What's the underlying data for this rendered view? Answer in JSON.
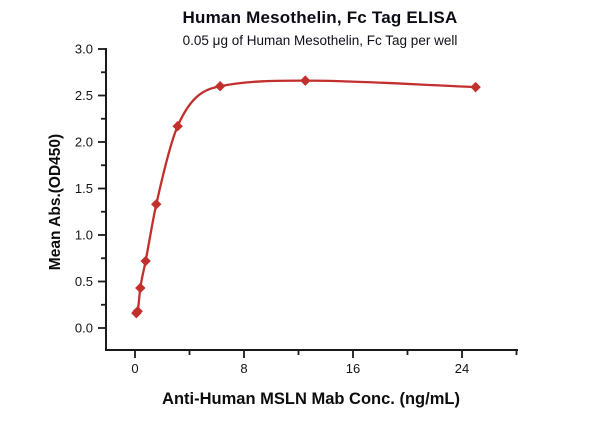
{
  "title": "Human Mesothelin, Fc Tag ELISA",
  "subtitle": "0.05 μg of Human Mesothelin, Fc Tag per well",
  "chart_data": {
    "type": "scatter",
    "title": "Human Mesothelin, Fc Tag ELISA",
    "subtitle": "0.05 μg of Human Mesothelin, Fc Tag per well",
    "xlabel": "Anti-Human MSLN Mab Conc. (ng/mL)",
    "ylabel": "Mean Abs.(OD450)",
    "x": [
      0.098,
      0.195,
      0.39,
      0.78,
      1.56,
      3.13,
      6.25,
      12.5,
      25
    ],
    "y": [
      0.16,
      0.18,
      0.43,
      0.72,
      1.33,
      2.17,
      2.6,
      2.66,
      2.59
    ],
    "fit_curve": "smooth sigmoidal fit through points",
    "marker": "diamond",
    "xlim": [
      -2.1,
      28.1
    ],
    "ylim": [
      -0.24,
      3.0
    ],
    "x_major_ticks": [
      "0",
      "8",
      "16",
      "24"
    ],
    "x_minor_ticks": [
      4,
      12,
      20,
      28
    ],
    "y_major_ticks": [
      "0.0",
      "0.5",
      "1.0",
      "1.5",
      "2.0",
      "2.5",
      "3.0"
    ],
    "y_minor_ticks": [
      0.25,
      0.75,
      1.25,
      1.75,
      2.25,
      2.75
    ],
    "grid": false,
    "legend": false,
    "colors": {
      "series": "#c2302e",
      "axis": "#1a1a1a",
      "text": "#0d0d0d",
      "background": "#ffffff"
    }
  }
}
